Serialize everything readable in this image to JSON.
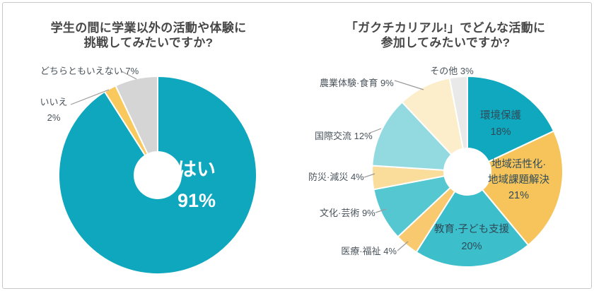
{
  "frame": {
    "border_color": "#C8C8C8",
    "background": "#FFFFFF"
  },
  "chart_data": [
    {
      "type": "pie",
      "donut": true,
      "title_lines": [
        "学生の間に学業以外の活動や体験に",
        "挑戦してみたいですか?"
      ],
      "unit": "%",
      "start_angle": 0,
      "direction": "clockwise",
      "legend_position": "none",
      "slices": [
        {
          "label": "はい",
          "value": 91,
          "pct": "91%",
          "color": "#0EA7BD",
          "label_pos": "inside"
        },
        {
          "label": "いいえ",
          "value": 2,
          "pct": "2%",
          "color": "#F9C95E",
          "label_pos": "outside"
        },
        {
          "label": "どちらともいえない",
          "value": 7,
          "pct": "7%",
          "color": "#D5D5D5",
          "label_pos": "outside",
          "callout": "どちらともいえない 7%"
        }
      ]
    },
    {
      "type": "pie",
      "donut": true,
      "title_lines": [
        "「ガクチカリアル!」でどんな活動に",
        "参加してみたいですか?"
      ],
      "unit": "%",
      "start_angle": 0,
      "direction": "clockwise",
      "legend_position": "none",
      "slices": [
        {
          "label": "環境保護",
          "value": 18,
          "pct": "18%",
          "color": "#0FA8BE",
          "label_pos": "inside"
        },
        {
          "label": "地域活性化·地域課題解決",
          "value": 21,
          "pct": "21%",
          "color": "#F6C45A",
          "label_pos": "inside",
          "label_line1": "地域活性化·",
          "label_line2": "地域課題解決"
        },
        {
          "label": "教育·子ども支援",
          "value": 20,
          "pct": "20%",
          "color": "#3CBECB",
          "label_pos": "inside"
        },
        {
          "label": "医療·福祉",
          "value": 4,
          "pct": "4%",
          "color": "#F8C96F",
          "label_pos": "outside",
          "callout": "医療·福祉 4%"
        },
        {
          "label": "文化·芸術",
          "value": 9,
          "pct": "9%",
          "color": "#55C7D1",
          "label_pos": "outside",
          "callout": "文化·芸術 9%"
        },
        {
          "label": "防災·減災",
          "value": 4,
          "pct": "4%",
          "color": "#FBDD9B",
          "label_pos": "outside",
          "callout": "防災·減災 4%"
        },
        {
          "label": "国際交流",
          "value": 12,
          "pct": "12%",
          "color": "#92DAE0",
          "label_pos": "outside",
          "callout": "国際交流 12%"
        },
        {
          "label": "農業体験·食育",
          "value": 9,
          "pct": "9%",
          "color": "#FCEECB",
          "label_pos": "outside",
          "callout": "農業体験·食育 9%"
        },
        {
          "label": "その他",
          "value": 3,
          "pct": "3%",
          "color": "#E9E9E9",
          "label_pos": "outside",
          "callout": "その他 3%"
        }
      ]
    }
  ]
}
